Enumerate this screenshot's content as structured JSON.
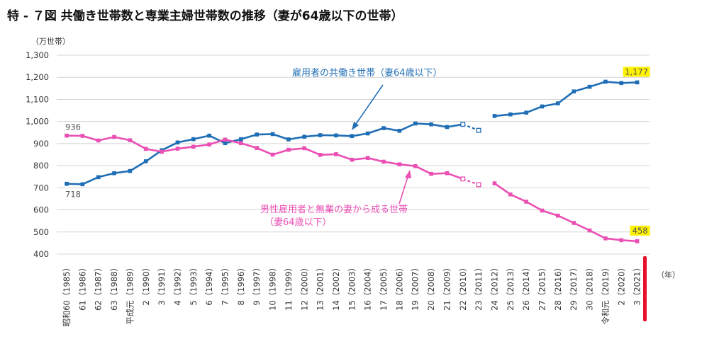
{
  "title": "特 - ７図 共働き世帯数と専業主婦世帯数の推移（妻が64歳以下の世帯）",
  "chart_data": {
    "type": "line",
    "y_unit": "（万世帯）",
    "x_unit": "（年）",
    "ylim": [
      400,
      1300
    ],
    "yticks": [
      "400",
      "500",
      "600",
      "700",
      "800",
      "900",
      "1,000",
      "1,100",
      "1,200",
      "1,300"
    ],
    "grid": true,
    "categories": [
      "昭和60（1985）",
      "61（1986）",
      "62（1987）",
      "63（1988）",
      "平成元（1989）",
      "2（1990）",
      "3（1991）",
      "4（1992）",
      "5（1993）",
      "6（1994）",
      "7（1995）",
      "8（1996）",
      "9（1997）",
      "10（1998）",
      "11（1999）",
      "12（2000）",
      "13（2001）",
      "14（2002）",
      "15（2003）",
      "16（2004）",
      "17（2005）",
      "18（2006）",
      "19（2007）",
      "20（2008）",
      "21（2009）",
      "22（2010）",
      "23（2011）",
      "24（2012）",
      "25（2013）",
      "26（2014）",
      "27（2015）",
      "28（2016）",
      "29（2017）",
      "30（2018）",
      "令和元（2019）",
      "2（2020）",
      "3（2021）"
    ],
    "series": [
      {
        "name": "雇用者の共働き世帯（妻64歳以下）",
        "color": "#1f6eb5",
        "values": [
          718,
          716,
          748,
          766,
          776,
          820,
          870,
          905,
          920,
          936,
          902,
          920,
          941,
          943,
          919,
          931,
          938,
          937,
          934,
          946,
          970,
          958,
          991,
          987,
          975,
          987,
          960,
          1025,
          1032,
          1040,
          1068,
          1082,
          1136,
          1157,
          1180,
          1174,
          1177
        ],
        "hollow_indices": [
          25,
          26
        ],
        "break_after_index": 26,
        "labels": [
          {
            "index": 0,
            "text": "718"
          },
          {
            "index": 36,
            "text": "1,177",
            "highlight": true
          }
        ]
      },
      {
        "name": "男性雇用者と無業の妻から成る世帯（妻64歳以下）",
        "color": "#ea4fb4",
        "values": [
          936,
          935,
          914,
          930,
          915,
          876,
          863,
          877,
          886,
          896,
          918,
          902,
          880,
          850,
          872,
          879,
          849,
          852,
          827,
          835,
          818,
          806,
          798,
          763,
          766,
          740,
          714,
          720,
          670,
          637,
          597,
          574,
          541,
          507,
          471,
          463,
          458
        ],
        "hollow_indices": [
          25,
          26
        ],
        "break_after_index": 26,
        "labels": [
          {
            "index": 0,
            "text": "936"
          },
          {
            "index": 36,
            "text": "458",
            "highlight": true
          }
        ]
      }
    ],
    "annotations": [
      {
        "text": "雇用者の共働き世帯（妻64歳以下）",
        "color": "#1f6eb5"
      },
      {
        "text": "男性雇用者と無業の妻から成る世帯",
        "color": "#ea4fb4"
      },
      {
        "text": "（妻64歳以下）",
        "color": "#ea4fb4"
      }
    ],
    "colors": {
      "grid": "#d4d4d4",
      "highlight": "#fff200",
      "marker_red": "#e8102a"
    }
  }
}
